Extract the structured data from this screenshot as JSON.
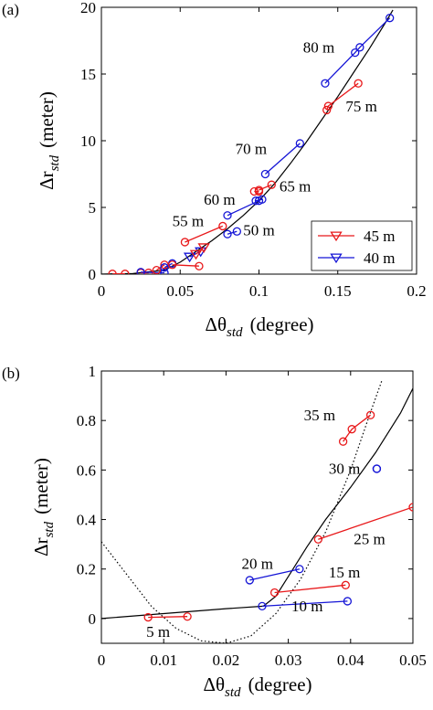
{
  "figure": {
    "panels": [
      "(a)",
      "(b)"
    ],
    "unit_x": "(degree)",
    "unit_y": "(meter)"
  },
  "chart_data": [
    {
      "type": "line",
      "panel_label": "(a)",
      "xlim": [
        0,
        0.2
      ],
      "ylim": [
        0,
        20
      ],
      "xticks": [
        "0",
        "0.05",
        "0.1",
        "0.15",
        "0.2"
      ],
      "yticks": [
        "0",
        "5",
        "10",
        "15",
        "20"
      ],
      "xlabel_symbol": "Δθ",
      "xlabel_sub": "std",
      "xlabel_unit": "(degree)",
      "ylabel_symbol": "Δr",
      "ylabel_sub": "std",
      "ylabel_unit": "(meter)",
      "grid": false,
      "legend": {
        "placement": "bottom-right",
        "entries": [
          {
            "label": "45 m",
            "color": "#e8181a",
            "marker": "triangle-down"
          },
          {
            "label": "40 m",
            "color": "#1515d6",
            "marker": "triangle-down"
          }
        ]
      },
      "curve": [
        [
          0.0,
          0.0
        ],
        [
          0.02,
          0.05
        ],
        [
          0.04,
          0.3
        ],
        [
          0.05,
          0.9
        ],
        [
          0.06,
          1.7
        ],
        [
          0.07,
          2.5
        ],
        [
          0.08,
          3.4
        ],
        [
          0.09,
          4.4
        ],
        [
          0.1,
          5.5
        ],
        [
          0.11,
          6.8
        ],
        [
          0.12,
          8.3
        ],
        [
          0.13,
          9.9
        ],
        [
          0.14,
          11.6
        ],
        [
          0.15,
          13.3
        ],
        [
          0.16,
          15.1
        ],
        [
          0.17,
          16.9
        ],
        [
          0.18,
          18.8
        ],
        [
          0.185,
          19.8
        ]
      ],
      "series": [
        {
          "color": "#e8181a",
          "marker": "circle",
          "points": [
            [
              0.007,
              0.02
            ],
            [
              0.015,
              0.02
            ]
          ]
        },
        {
          "color": "#e8181a",
          "marker": "circle",
          "points": [
            [
              0.025,
              0.1
            ],
            [
              0.03,
              0.1
            ]
          ]
        },
        {
          "color": "#1515d6",
          "marker": "circle",
          "points": [
            [
              0.025,
              0.15
            ],
            [
              0.04,
              0.1
            ]
          ]
        },
        {
          "color": "#e8181a",
          "marker": "circle",
          "points": [
            [
              0.035,
              0.3
            ],
            [
              0.04,
              0.7
            ]
          ]
        },
        {
          "color": "#1515d6",
          "marker": "circle",
          "points": [
            [
              0.04,
              0.5
            ],
            [
              0.045,
              0.8
            ]
          ]
        },
        {
          "color": "#e8181a",
          "marker": "circle",
          "points": [
            [
              0.045,
              0.7
            ],
            [
              0.062,
              0.6
            ]
          ]
        },
        {
          "color": "#1515d6",
          "marker": "triangle-down",
          "points": [
            [
              0.056,
              1.3
            ],
            [
              0.063,
              1.7
            ]
          ]
        },
        {
          "color": "#e8181a",
          "marker": "triangle-down",
          "points": [
            [
              0.06,
              1.5
            ],
            [
              0.065,
              2.0
            ]
          ]
        },
        {
          "color": "#e8181a",
          "marker": "circle",
          "points": [
            [
              0.053,
              2.4
            ],
            [
              0.077,
              3.6
            ]
          ]
        },
        {
          "color": "#1515d6",
          "marker": "circle",
          "points": [
            [
              0.08,
              3.0
            ],
            [
              0.086,
              3.2
            ]
          ]
        },
        {
          "color": "#1515d6",
          "marker": "circle",
          "points": [
            [
              0.08,
              4.4
            ],
            [
              0.1,
              5.5
            ]
          ]
        },
        {
          "color": "#e8181a",
          "marker": "circle",
          "points": [
            [
              0.097,
              6.2
            ],
            [
              0.1,
              6.2
            ]
          ]
        },
        {
          "color": "#e8181a",
          "marker": "circle",
          "points": [
            [
              0.1,
              6.3
            ],
            [
              0.108,
              6.7
            ]
          ]
        },
        {
          "color": "#1515d6",
          "marker": "circle",
          "points": [
            [
              0.098,
              5.5
            ],
            [
              0.102,
              5.6
            ]
          ]
        },
        {
          "color": "#1515d6",
          "marker": "circle",
          "points": [
            [
              0.104,
              7.5
            ],
            [
              0.126,
              9.8
            ]
          ]
        },
        {
          "color": "#e8181a",
          "marker": "circle",
          "points": [
            [
              0.143,
              12.3
            ],
            [
              0.144,
              12.6
            ],
            [
              0.163,
              14.3
            ]
          ]
        },
        {
          "color": "#1515d6",
          "marker": "circle",
          "points": [
            [
              0.142,
              14.3
            ],
            [
              0.161,
              16.6
            ],
            [
              0.164,
              17.0
            ],
            [
              0.183,
              19.2
            ]
          ]
        }
      ],
      "annotations": [
        {
          "text": "80 m",
          "x": 0.128,
          "y": 16.6
        },
        {
          "text": "75 m",
          "x": 0.155,
          "y": 12.2
        },
        {
          "text": "70 m",
          "x": 0.085,
          "y": 9.0
        },
        {
          "text": "65 m",
          "x": 0.113,
          "y": 6.2
        },
        {
          "text": "60 m",
          "x": 0.065,
          "y": 5.2
        },
        {
          "text": "55 m",
          "x": 0.045,
          "y": 3.6
        },
        {
          "text": "50 m",
          "x": 0.09,
          "y": 2.9
        }
      ]
    },
    {
      "type": "line",
      "panel_label": "(b)",
      "xlim": [
        0,
        0.05
      ],
      "ylim": [
        -0.1,
        1
      ],
      "xticks": [
        "0",
        "0.01",
        "0.02",
        "0.03",
        "0.04",
        "0.05"
      ],
      "yticks": [
        "0",
        "0.2",
        "0.4",
        "0.6",
        "0.8",
        "1"
      ],
      "xlabel_symbol": "Δθ",
      "xlabel_sub": "std",
      "xlabel_unit": "(degree)",
      "ylabel_symbol": "Δr",
      "ylabel_sub": "std",
      "ylabel_unit": "(meter)",
      "grid": false,
      "curves": [
        {
          "style": "solid",
          "points": [
            [
              0.0,
              0.0
            ],
            [
              0.01,
              0.02
            ],
            [
              0.02,
              0.04
            ],
            [
              0.026,
              0.05
            ],
            [
              0.028,
              0.09
            ],
            [
              0.03,
              0.17
            ],
            [
              0.033,
              0.29
            ],
            [
              0.036,
              0.4
            ],
            [
              0.04,
              0.53
            ],
            [
              0.044,
              0.67
            ],
            [
              0.048,
              0.83
            ],
            [
              0.05,
              0.93
            ]
          ]
        },
        {
          "style": "dotted",
          "points": [
            [
              0.0,
              0.31
            ],
            [
              0.004,
              0.18
            ],
            [
              0.008,
              0.05
            ],
            [
              0.012,
              -0.04
            ],
            [
              0.016,
              -0.09
            ],
            [
              0.02,
              -0.1
            ],
            [
              0.024,
              -0.07
            ],
            [
              0.028,
              0.02
            ],
            [
              0.032,
              0.16
            ],
            [
              0.036,
              0.35
            ],
            [
              0.04,
              0.6
            ],
            [
              0.043,
              0.82
            ],
            [
              0.045,
              0.96
            ]
          ]
        }
      ],
      "series": [
        {
          "color": "#e8181a",
          "marker": "circle",
          "points": [
            [
              0.0075,
              0.005
            ],
            [
              0.0138,
              0.008
            ]
          ]
        },
        {
          "color": "#1515d6",
          "marker": "circle",
          "points": [
            [
              0.0258,
              0.05
            ],
            [
              0.0395,
              0.07
            ]
          ]
        },
        {
          "color": "#e8181a",
          "marker": "circle",
          "points": [
            [
              0.0278,
              0.105
            ],
            [
              0.0392,
              0.135
            ]
          ]
        },
        {
          "color": "#1515d6",
          "marker": "circle",
          "points": [
            [
              0.0238,
              0.155
            ],
            [
              0.0318,
              0.2
            ]
          ]
        },
        {
          "color": "#e8181a",
          "marker": "circle",
          "points": [
            [
              0.0348,
              0.32
            ],
            [
              0.05,
              0.45
            ]
          ]
        },
        {
          "color": "#1515d6",
          "marker": "circle",
          "points": [
            [
              0.0442,
              0.605
            ],
            [
              0.0442,
              0.605
            ]
          ]
        },
        {
          "color": "#e8181a",
          "marker": "circle",
          "points": [
            [
              0.0388,
              0.715
            ],
            [
              0.0402,
              0.765
            ],
            [
              0.0432,
              0.822
            ]
          ]
        }
      ],
      "annotations": [
        {
          "text": "35 m",
          "x": 0.0325,
          "y": 0.8
        },
        {
          "text": "30 m",
          "x": 0.0365,
          "y": 0.585
        },
        {
          "text": "25 m",
          "x": 0.0405,
          "y": 0.3
        },
        {
          "text": "20 m",
          "x": 0.0225,
          "y": 0.2
        },
        {
          "text": "15 m",
          "x": 0.0365,
          "y": 0.165
        },
        {
          "text": "10 m",
          "x": 0.0305,
          "y": 0.03
        },
        {
          "text": "5 m",
          "x": 0.0072,
          "y": -0.075
        }
      ]
    }
  ]
}
